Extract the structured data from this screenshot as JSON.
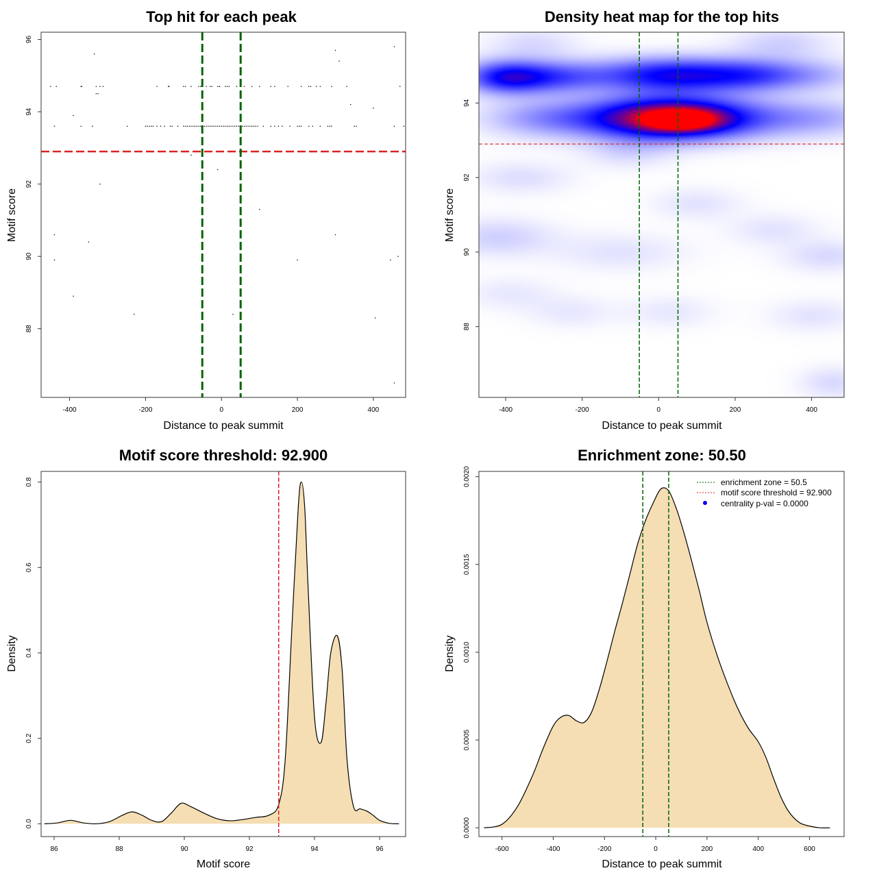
{
  "chart_data": [
    {
      "type": "scatter",
      "title": "Top hit for each peak",
      "xlabel": "Distance to peak summit",
      "ylabel": "Motif score",
      "xlim": [
        -475,
        485
      ],
      "ylim": [
        86.1,
        96.2
      ],
      "xticks": [
        -400,
        -200,
        0,
        200,
        400
      ],
      "yticks": [
        88,
        90,
        92,
        94,
        96
      ],
      "threshold": 92.9,
      "enrichment_zone": [
        -50.5,
        50.5
      ],
      "threshold_color": "#dd2222",
      "zone_color": "#006400",
      "points": [
        [
          -450,
          94.7
        ],
        [
          -435,
          94.7
        ],
        [
          -370,
          94.7
        ],
        [
          -368,
          94.7
        ],
        [
          -330,
          94.7
        ],
        [
          -320,
          94.7
        ],
        [
          -312,
          94.7
        ],
        [
          -170,
          94.7
        ],
        [
          -140,
          94.7
        ],
        [
          -138,
          94.7
        ],
        [
          -100,
          94.7
        ],
        [
          -95,
          94.7
        ],
        [
          -80,
          94.7
        ],
        [
          -60,
          94.7
        ],
        [
          -55,
          94.7
        ],
        [
          -40,
          94.7
        ],
        [
          -30,
          94.7
        ],
        [
          -25,
          94.7
        ],
        [
          -10,
          94.7
        ],
        [
          -5,
          94.7
        ],
        [
          10,
          94.7
        ],
        [
          15,
          94.7
        ],
        [
          20,
          94.7
        ],
        [
          40,
          94.7
        ],
        [
          50,
          94.7
        ],
        [
          60,
          94.7
        ],
        [
          80,
          94.7
        ],
        [
          100,
          94.7
        ],
        [
          130,
          94.7
        ],
        [
          140,
          94.7
        ],
        [
          175,
          94.7
        ],
        [
          210,
          94.7
        ],
        [
          230,
          94.7
        ],
        [
          235,
          94.7
        ],
        [
          250,
          94.7
        ],
        [
          260,
          94.7
        ],
        [
          290,
          94.7
        ],
        [
          330,
          94.7
        ],
        [
          470,
          94.7
        ],
        [
          -330,
          94.5
        ],
        [
          -325,
          94.5
        ],
        [
          340,
          94.2
        ],
        [
          400,
          94.1
        ],
        [
          -390,
          93.9
        ],
        [
          -440,
          93.6
        ],
        [
          -370,
          93.6
        ],
        [
          -340,
          93.6
        ],
        [
          -248,
          93.6
        ],
        [
          -200,
          93.6
        ],
        [
          -195,
          93.6
        ],
        [
          -190,
          93.6
        ],
        [
          -185,
          93.6
        ],
        [
          -180,
          93.6
        ],
        [
          -170,
          93.6
        ],
        [
          -160,
          93.6
        ],
        [
          -150,
          93.6
        ],
        [
          -135,
          93.6
        ],
        [
          -130,
          93.6
        ],
        [
          -115,
          93.6
        ],
        [
          -100,
          93.6
        ],
        [
          -95,
          93.6
        ],
        [
          -90,
          93.6
        ],
        [
          -85,
          93.6
        ],
        [
          -80,
          93.6
        ],
        [
          -75,
          93.6
        ],
        [
          -70,
          93.6
        ],
        [
          -65,
          93.6
        ],
        [
          -60,
          93.6
        ],
        [
          -55,
          93.6
        ],
        [
          -50,
          93.6
        ],
        [
          -45,
          93.6
        ],
        [
          -40,
          93.6
        ],
        [
          -35,
          93.6
        ],
        [
          -30,
          93.6
        ],
        [
          -25,
          93.6
        ],
        [
          -20,
          93.6
        ],
        [
          -15,
          93.6
        ],
        [
          -10,
          93.6
        ],
        [
          -5,
          93.6
        ],
        [
          0,
          93.6
        ],
        [
          5,
          93.6
        ],
        [
          10,
          93.6
        ],
        [
          15,
          93.6
        ],
        [
          20,
          93.6
        ],
        [
          25,
          93.6
        ],
        [
          30,
          93.6
        ],
        [
          35,
          93.6
        ],
        [
          40,
          93.6
        ],
        [
          45,
          93.6
        ],
        [
          50,
          93.6
        ],
        [
          55,
          93.6
        ],
        [
          60,
          93.6
        ],
        [
          65,
          93.6
        ],
        [
          70,
          93.6
        ],
        [
          75,
          93.6
        ],
        [
          80,
          93.6
        ],
        [
          85,
          93.6
        ],
        [
          90,
          93.6
        ],
        [
          95,
          93.6
        ],
        [
          110,
          93.6
        ],
        [
          130,
          93.6
        ],
        [
          140,
          93.6
        ],
        [
          150,
          93.6
        ],
        [
          160,
          93.6
        ],
        [
          180,
          93.6
        ],
        [
          200,
          93.6
        ],
        [
          205,
          93.6
        ],
        [
          210,
          93.6
        ],
        [
          230,
          93.6
        ],
        [
          240,
          93.6
        ],
        [
          260,
          93.6
        ],
        [
          280,
          93.6
        ],
        [
          285,
          93.6
        ],
        [
          290,
          93.6
        ],
        [
          350,
          93.6
        ],
        [
          355,
          93.6
        ],
        [
          455,
          93.6
        ],
        [
          480,
          93.6
        ],
        [
          -335,
          95.6
        ],
        [
          -5,
          94.7
        ],
        [
          300,
          95.7
        ],
        [
          310,
          95.4
        ],
        [
          455,
          95.8
        ],
        [
          -80,
          92.8
        ],
        [
          -10,
          92.4
        ],
        [
          -320,
          92.0
        ],
        [
          100,
          91.3
        ],
        [
          -440,
          90.6
        ],
        [
          -350,
          90.4
        ],
        [
          300,
          90.6
        ],
        [
          -440,
          89.9
        ],
        [
          200,
          89.9
        ],
        [
          445,
          89.9
        ],
        [
          465,
          90.0
        ],
        [
          -390,
          88.9
        ],
        [
          -230,
          88.4
        ],
        [
          30,
          88.4
        ],
        [
          405,
          88.3
        ],
        [
          455,
          86.5
        ]
      ]
    },
    {
      "type": "heatmap",
      "title": "Density heat map for the top hits",
      "xlabel": "Distance to peak summit",
      "ylabel": "Motif score",
      "xlim": [
        -470,
        485
      ],
      "ylim": [
        86.1,
        95.9
      ],
      "xticks": [
        -400,
        -200,
        0,
        200,
        400
      ],
      "yticks": [
        88,
        90,
        92,
        94
      ],
      "threshold": 92.9,
      "enrichment_zone": [
        -50.5,
        50.5
      ],
      "colors": [
        "#ffffff",
        "#0000ff",
        "#ff0000"
      ],
      "blobs": [
        {
          "x": 30,
          "y": 93.6,
          "sx": 150,
          "sy": 0.38,
          "w": 1.0
        },
        {
          "x": 60,
          "y": 93.55,
          "sx": 60,
          "sy": 0.18,
          "w": 0.55
        },
        {
          "x": 30,
          "y": 94.75,
          "sx": 140,
          "sy": 0.32,
          "w": 0.55
        },
        {
          "x": -400,
          "y": 94.7,
          "sx": 75,
          "sy": 0.3,
          "w": 0.5
        },
        {
          "x": -270,
          "y": 94.7,
          "sx": 90,
          "sy": 0.3,
          "w": 0.3
        },
        {
          "x": 250,
          "y": 94.75,
          "sx": 100,
          "sy": 0.3,
          "w": 0.3
        },
        {
          "x": 420,
          "y": 94.75,
          "sx": 90,
          "sy": 0.3,
          "w": 0.12
        },
        {
          "x": 400,
          "y": 93.6,
          "sx": 120,
          "sy": 0.35,
          "w": 0.18
        },
        {
          "x": -300,
          "y": 93.6,
          "sx": 110,
          "sy": 0.35,
          "w": 0.2
        },
        {
          "x": -330,
          "y": 95.6,
          "sx": 80,
          "sy": 0.3,
          "w": 0.08
        },
        {
          "x": 320,
          "y": 95.6,
          "sx": 90,
          "sy": 0.3,
          "w": 0.1
        },
        {
          "x": -360,
          "y": 92.0,
          "sx": 90,
          "sy": 0.3,
          "w": 0.07
        },
        {
          "x": -80,
          "y": 92.7,
          "sx": 80,
          "sy": 0.3,
          "w": 0.08
        },
        {
          "x": 100,
          "y": 91.3,
          "sx": 80,
          "sy": 0.3,
          "w": 0.06
        },
        {
          "x": -420,
          "y": 90.4,
          "sx": 100,
          "sy": 0.35,
          "w": 0.1
        },
        {
          "x": 300,
          "y": 90.6,
          "sx": 80,
          "sy": 0.3,
          "w": 0.06
        },
        {
          "x": -100,
          "y": 90.0,
          "sx": 120,
          "sy": 0.35,
          "w": 0.06
        },
        {
          "x": 440,
          "y": 89.9,
          "sx": 80,
          "sy": 0.3,
          "w": 0.08
        },
        {
          "x": -390,
          "y": 88.9,
          "sx": 80,
          "sy": 0.3,
          "w": 0.05
        },
        {
          "x": -230,
          "y": 88.4,
          "sx": 80,
          "sy": 0.3,
          "w": 0.05
        },
        {
          "x": 30,
          "y": 88.4,
          "sx": 80,
          "sy": 0.3,
          "w": 0.05
        },
        {
          "x": 405,
          "y": 88.3,
          "sx": 80,
          "sy": 0.3,
          "w": 0.06
        },
        {
          "x": 455,
          "y": 86.5,
          "sx": 60,
          "sy": 0.3,
          "w": 0.08
        }
      ]
    },
    {
      "type": "area",
      "title": "Motif score threshold: 92.900",
      "xlabel": "Motif score",
      "ylabel": "Density",
      "xlim": [
        85.6,
        96.8
      ],
      "ylim": [
        -0.03,
        0.825
      ],
      "xticks": [
        86,
        88,
        90,
        92,
        94,
        96
      ],
      "yticks": [
        0.0,
        0.2,
        0.4,
        0.6,
        0.8
      ],
      "ytick_labels": [
        "0.0",
        "0.2",
        "0.4",
        "0.6",
        "0.8"
      ],
      "threshold": 92.9,
      "fill_color": "#f5deb3",
      "threshold_color": "#dd2222",
      "x": [
        85.7,
        86.1,
        86.5,
        86.9,
        87.3,
        87.7,
        88.1,
        88.4,
        88.7,
        89.0,
        89.3,
        89.6,
        89.9,
        90.2,
        90.6,
        91.0,
        91.4,
        91.8,
        92.2,
        92.6,
        92.9,
        93.1,
        93.3,
        93.5,
        93.6,
        93.7,
        93.8,
        94.0,
        94.2,
        94.35,
        94.5,
        94.7,
        94.85,
        95.0,
        95.2,
        95.4,
        95.6,
        95.8,
        96.0,
        96.3,
        96.6
      ],
      "y": [
        0.0,
        0.002,
        0.008,
        0.002,
        0.0,
        0.005,
        0.02,
        0.028,
        0.02,
        0.008,
        0.005,
        0.025,
        0.048,
        0.04,
        0.025,
        0.012,
        0.007,
        0.01,
        0.015,
        0.02,
        0.045,
        0.15,
        0.45,
        0.74,
        0.8,
        0.74,
        0.56,
        0.25,
        0.19,
        0.28,
        0.4,
        0.44,
        0.36,
        0.15,
        0.04,
        0.035,
        0.03,
        0.02,
        0.008,
        0.001,
        0.0
      ]
    },
    {
      "type": "area",
      "title": "Enrichment zone: 50.50",
      "xlabel": "Distance to peak summit",
      "ylabel": "Density",
      "xlim": [
        -690,
        735
      ],
      "ylim": [
        -5e-05,
        0.00203
      ],
      "xticks": [
        -600,
        -400,
        -200,
        0,
        200,
        400,
        600
      ],
      "yticks": [
        0.0,
        0.0005,
        0.001,
        0.0015,
        0.002
      ],
      "ytick_labels": [
        "0.0000",
        "0.0005",
        "0.0010",
        "0.0015",
        "0.0020"
      ],
      "enrichment_zone": [
        -50.5,
        50.5
      ],
      "fill_color": "#f5deb3",
      "zone_color": "#006400",
      "legend": [
        {
          "label": "enrichment zone = 50.5",
          "color": "#006400",
          "style": "dotted-line"
        },
        {
          "label": "motif score threshold = 92.900",
          "color": "#dd2222",
          "style": "dotted-line"
        },
        {
          "label": "centrality p-val = 0.0000",
          "color": "#0000ff",
          "style": "point"
        }
      ],
      "x": [
        -670,
        -600,
        -540,
        -480,
        -440,
        -400,
        -370,
        -340,
        -310,
        -280,
        -250,
        -220,
        -190,
        -160,
        -130,
        -100,
        -70,
        -40,
        -10,
        20,
        50,
        80,
        110,
        140,
        170,
        200,
        240,
        280,
        320,
        360,
        400,
        430,
        460,
        490,
        520,
        560,
        600,
        640,
        680
      ],
      "y": [
        0.0,
        2e-05,
        0.00012,
        0.0003,
        0.00045,
        0.00058,
        0.00063,
        0.00064,
        0.00061,
        0.0006,
        0.00066,
        0.00079,
        0.00095,
        0.00112,
        0.00128,
        0.00145,
        0.00162,
        0.00175,
        0.00185,
        0.00193,
        0.00192,
        0.00182,
        0.00168,
        0.00152,
        0.00135,
        0.00117,
        0.00098,
        0.00082,
        0.00068,
        0.00057,
        0.00049,
        0.0004,
        0.00028,
        0.00017,
        9e-05,
        3e-05,
        1e-05,
        0.0,
        0.0
      ]
    }
  ]
}
